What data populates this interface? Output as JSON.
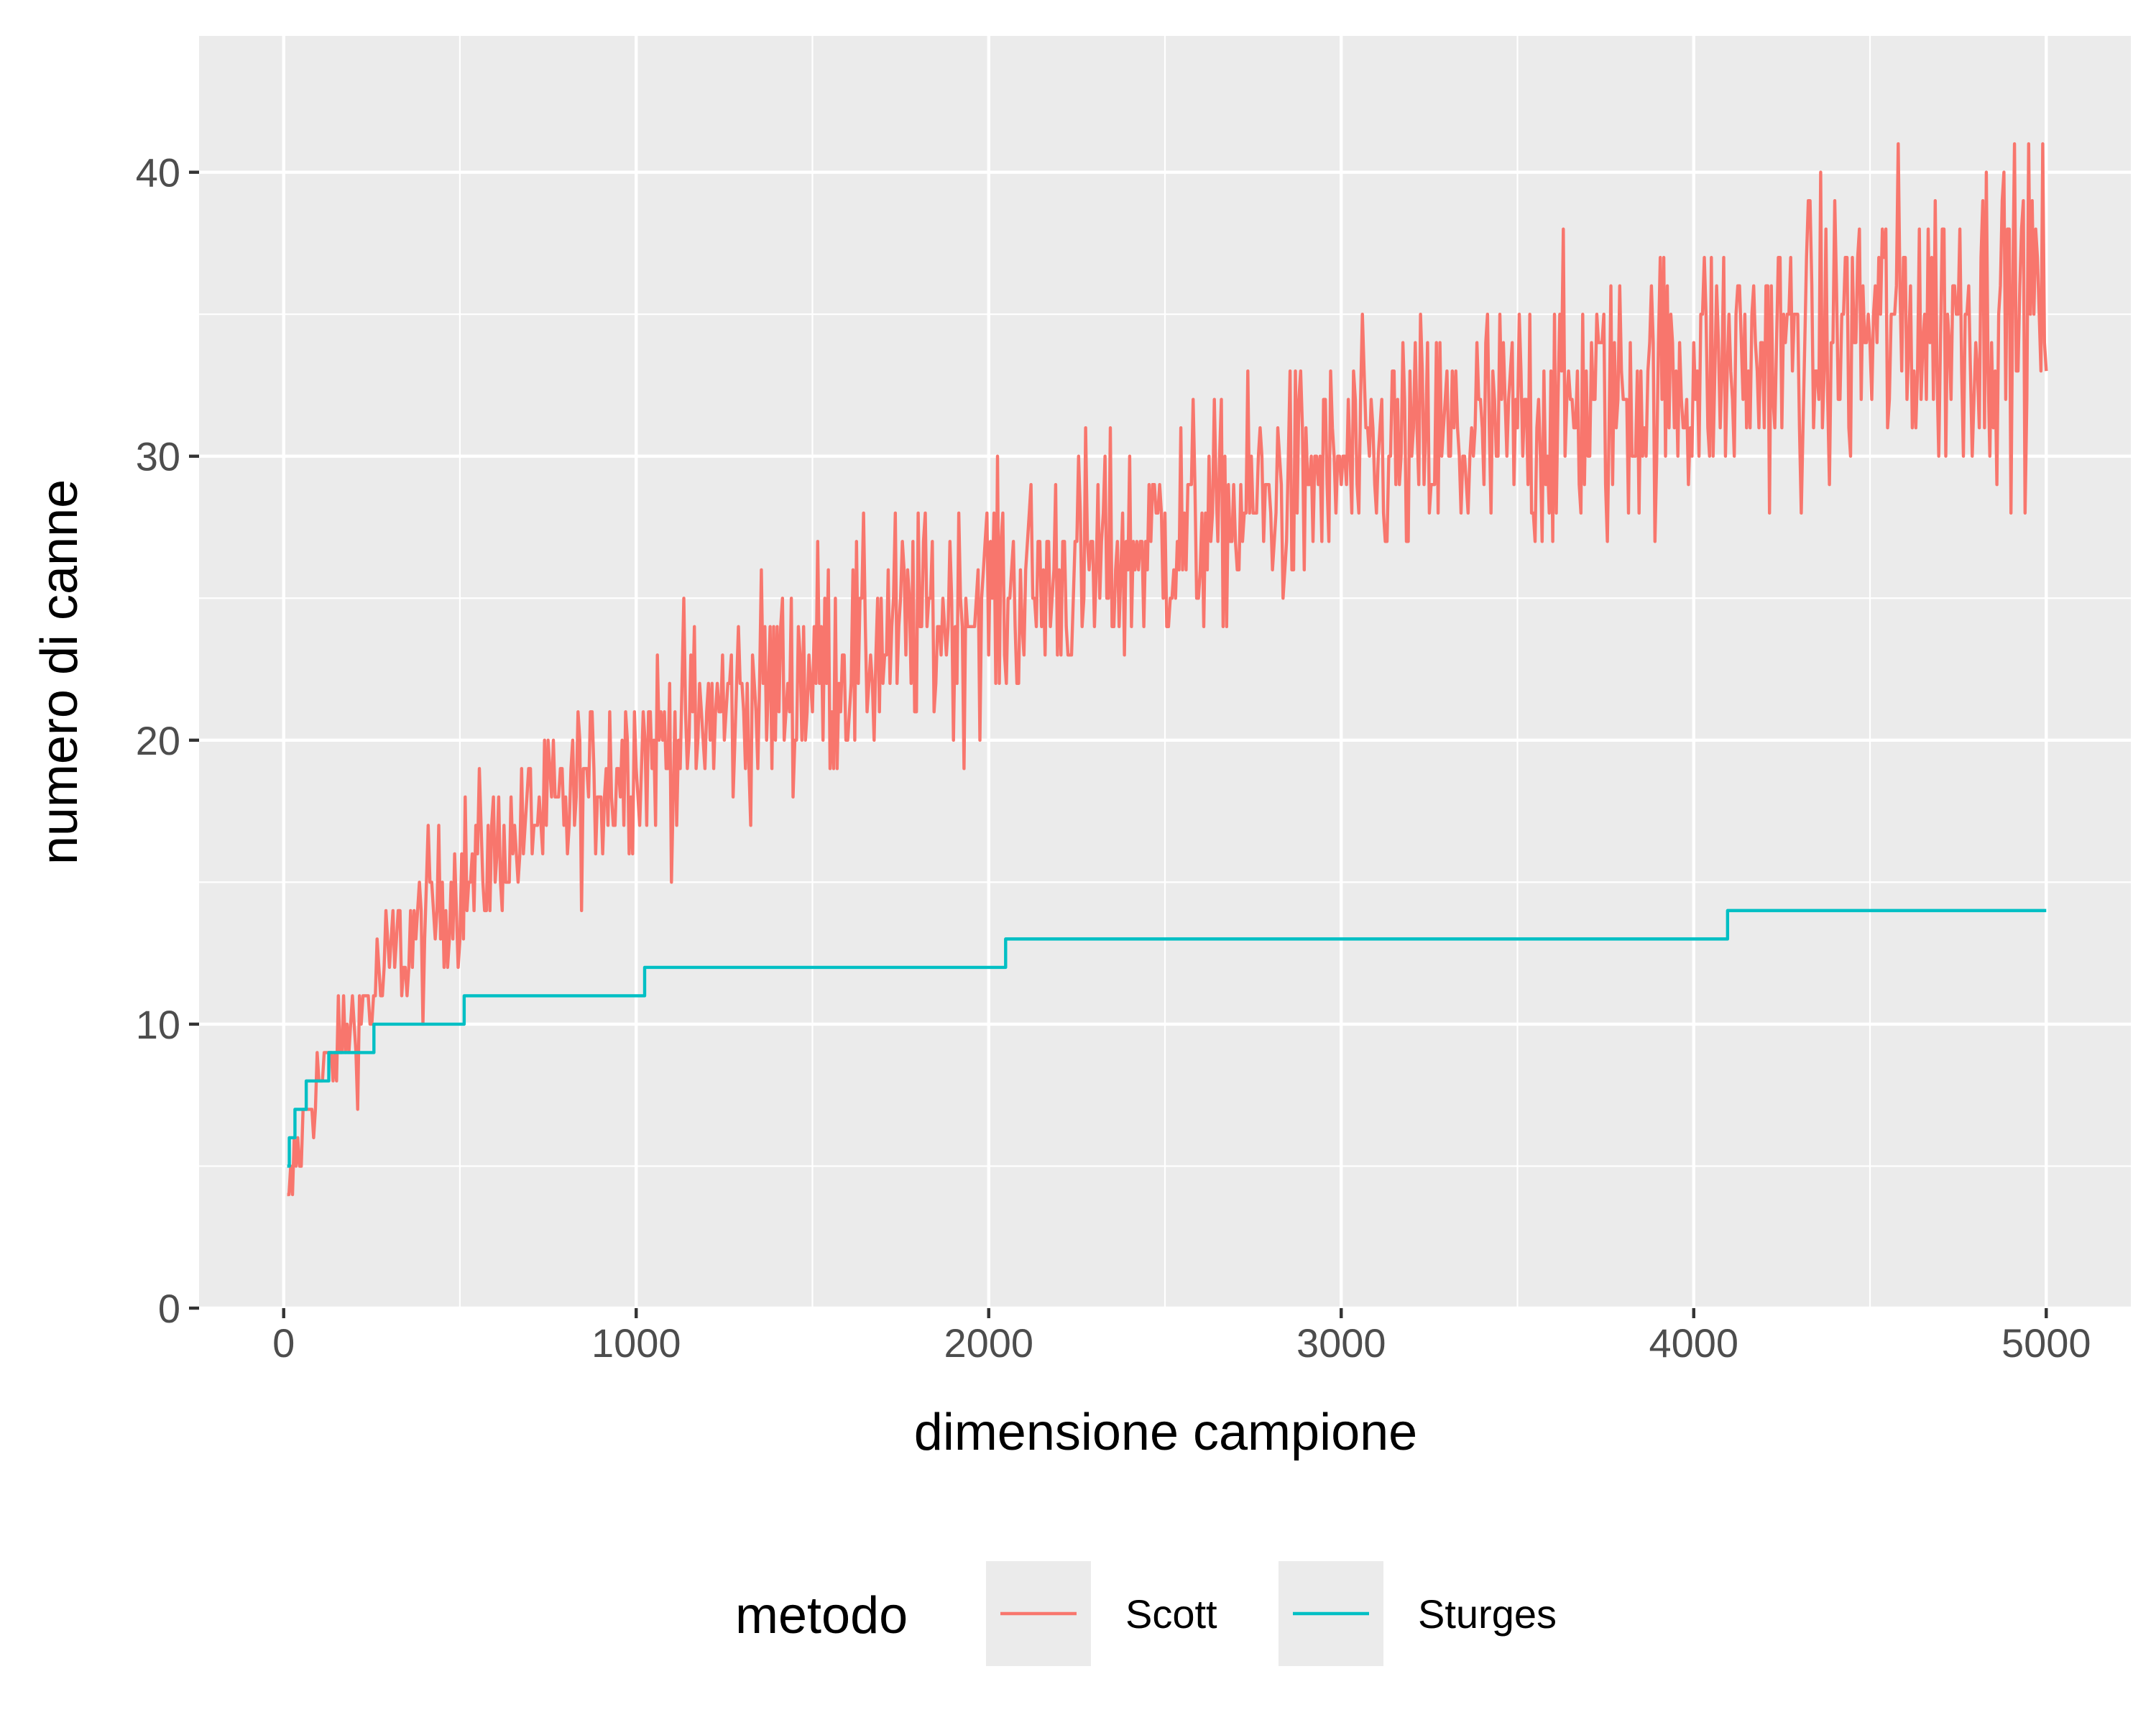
{
  "chart_data": {
    "type": "line",
    "title": "",
    "xlabel": "dimensione campione",
    "ylabel": "numero di canne",
    "xlim": [
      -240,
      5240
    ],
    "ylim": [
      0,
      44.8
    ],
    "x_ticks": [
      0,
      1000,
      2000,
      3000,
      4000,
      5000
    ],
    "y_ticks": [
      0,
      10,
      20,
      30,
      40
    ],
    "x_tick_labels": [
      "0",
      "1000",
      "2000",
      "3000",
      "4000",
      "5000"
    ],
    "y_tick_labels": [
      "0",
      "10",
      "20",
      "30",
      "40"
    ],
    "grid": true,
    "legend": {
      "title": "metodo",
      "position": "bottom"
    },
    "series": [
      {
        "name": "Scott",
        "color": "#F8766D",
        "style": "noisy",
        "trend_x": [
          10,
          20,
          50,
          100,
          200,
          300,
          500,
          700,
          1000,
          1500,
          2000,
          2500,
          3000,
          3500,
          4000,
          4500,
          5000
        ],
        "trend_y": [
          3,
          4,
          6,
          8,
          10,
          12,
          15,
          17,
          19.5,
          22.5,
          25,
          27,
          29.5,
          31,
          33,
          34.5,
          35.5
        ],
        "spread": [
          1,
          1,
          1,
          1,
          1.5,
          2,
          2,
          2,
          2.5,
          3,
          3,
          3,
          3,
          3.5,
          3.5,
          4,
          4
        ]
      },
      {
        "name": "Sturges",
        "color": "#00BFC4",
        "style": "step",
        "x": [
          10,
          16,
          32,
          64,
          128,
          256,
          512,
          1024,
          2048,
          4096,
          5000
        ],
        "y": [
          5,
          6,
          7,
          8,
          9,
          10,
          11,
          12,
          13,
          14,
          14
        ]
      }
    ]
  }
}
